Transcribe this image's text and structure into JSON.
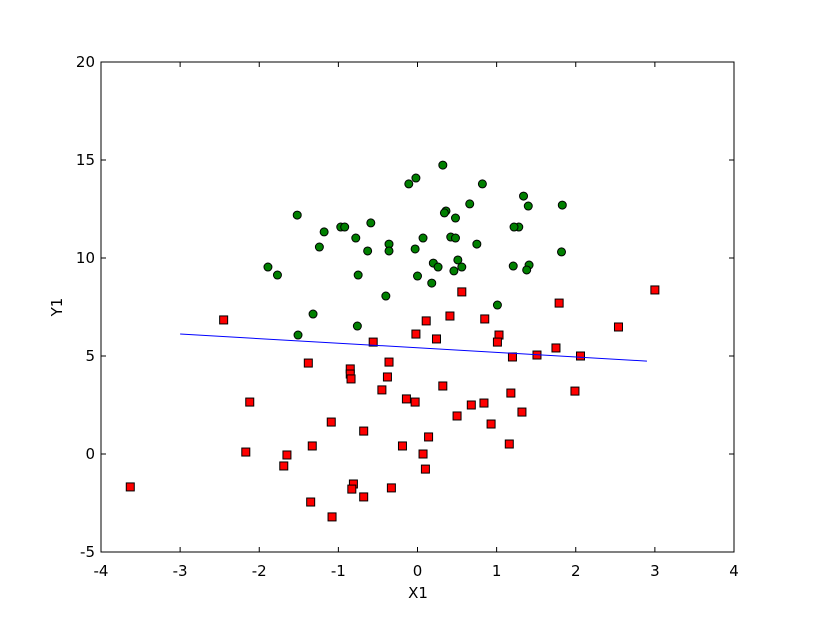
{
  "chart_data": {
    "type": "scatter",
    "xlabel": "X1",
    "ylabel": "Y1",
    "xlim": [
      -4,
      4
    ],
    "ylim": [
      -5,
      20
    ],
    "xticks": [
      -4,
      -3,
      -2,
      -1,
      0,
      1,
      2,
      3,
      4
    ],
    "yticks": [
      -5,
      0,
      5,
      10,
      15,
      20
    ],
    "series": [
      {
        "mode": "markers",
        "marker": "circle",
        "color": "#008000",
        "x": [
          0.32,
          -0.02,
          -0.11,
          0.82,
          1.34,
          1.4,
          1.83,
          -1.52,
          0.36,
          0.34,
          0.66,
          0.48,
          -0.59,
          -1.18,
          -0.97,
          -0.92,
          1.28,
          1.22,
          -0.78,
          0.07,
          0.42,
          0.48,
          -1.24,
          -0.36,
          0.75,
          -0.63,
          -0.36,
          -0.03,
          1.82,
          -1.89,
          0.51,
          0.2,
          0.26,
          0.56,
          0.46,
          1.21,
          1.41,
          1.38,
          -1.77,
          -0.75,
          0.0,
          0.18,
          -0.4,
          1.01,
          -1.32,
          -0.76,
          -1.51
        ],
        "values": [
          14.74,
          14.08,
          13.78,
          13.78,
          13.16,
          12.65,
          12.7,
          12.19,
          12.4,
          12.3,
          12.76,
          12.04,
          11.79,
          11.33,
          11.58,
          11.58,
          11.58,
          11.58,
          11.02,
          11.02,
          11.07,
          11.02,
          10.56,
          10.71,
          10.71,
          10.36,
          10.36,
          10.46,
          10.31,
          9.54,
          9.9,
          9.74,
          9.54,
          9.54,
          9.34,
          9.59,
          9.64,
          9.39,
          9.13,
          9.13,
          9.08,
          8.72,
          8.06,
          7.6,
          7.14,
          6.53,
          6.07
        ]
      },
      {
        "mode": "markers",
        "marker": "square",
        "color": "#ff0000",
        "x": [
          -3.63,
          -2.45,
          -2.12,
          -2.17,
          -1.65,
          -1.69,
          -1.33,
          -1.35,
          -1.38,
          -1.09,
          -1.08,
          -0.85,
          -0.85,
          -0.84,
          -0.81,
          -0.83,
          -0.68,
          -0.68,
          -0.56,
          -0.36,
          -0.38,
          -0.45,
          -0.33,
          -0.19,
          -0.14,
          -0.03,
          -0.02,
          0.11,
          0.24,
          0.41,
          0.56,
          0.07,
          0.1,
          0.14,
          0.32,
          0.5,
          0.68,
          0.84,
          0.85,
          0.93,
          1.03,
          1.01,
          1.2,
          1.18,
          1.16,
          1.32,
          1.51,
          1.75,
          1.79,
          1.99,
          2.06,
          2.54,
          3.0
        ],
        "values": [
          -1.68,
          6.84,
          2.65,
          0.1,
          -0.05,
          -0.61,
          0.41,
          -2.45,
          4.64,
          1.63,
          -3.21,
          4.34,
          4.08,
          3.83,
          -1.53,
          -1.79,
          -2.19,
          1.17,
          5.71,
          4.69,
          3.93,
          3.27,
          -1.73,
          0.41,
          2.81,
          2.65,
          6.12,
          6.79,
          5.87,
          7.04,
          8.27,
          0.0,
          -0.77,
          0.87,
          3.47,
          1.94,
          2.5,
          2.6,
          6.89,
          1.53,
          6.07,
          5.71,
          4.95,
          3.11,
          0.51,
          2.14,
          5.05,
          5.41,
          7.7,
          3.21,
          5.0,
          6.48,
          8.37
        ]
      },
      {
        "mode": "line",
        "color": "#0000ff",
        "x": [
          -3.0,
          2.9
        ],
        "values": [
          6.12,
          4.74
        ]
      }
    ]
  }
}
